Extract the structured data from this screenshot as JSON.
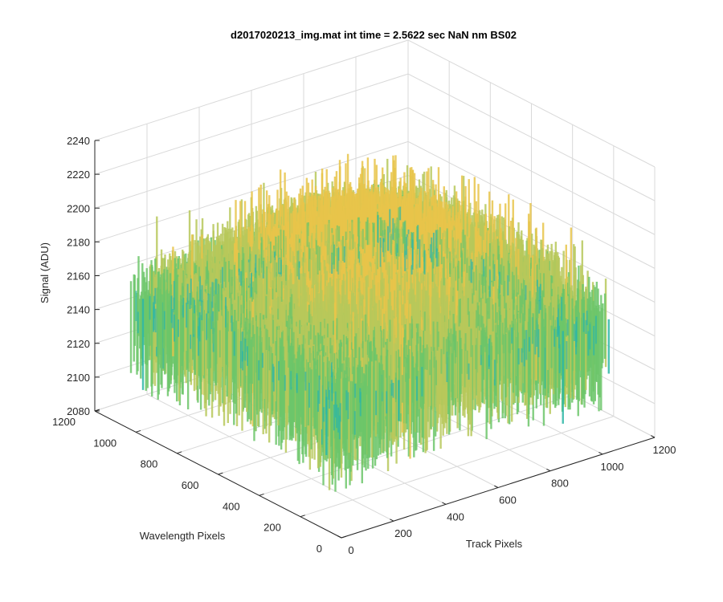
{
  "chart_data": {
    "type": "surface",
    "title": "d2017020213_img.mat int time = 2.5622 sec  NaN nm BS02",
    "xlabel": "Track Pixels",
    "ylabel": "Wavelength Pixels",
    "zlabel": "Signal (ADU)",
    "xlim": [
      0,
      1200
    ],
    "ylim": [
      0,
      1200
    ],
    "zlim": [
      2080,
      2240
    ],
    "xticks": [
      "0",
      "200",
      "400",
      "600",
      "800",
      "1000",
      "1200"
    ],
    "yticks": [
      "0",
      "200",
      "400",
      "600",
      "800",
      "1000",
      "1200"
    ],
    "zticks": [
      "2080",
      "2100",
      "2120",
      "2140",
      "2160",
      "2180",
      "2200",
      "2220",
      "2240"
    ],
    "grid": true,
    "colormap": [
      "#1f9cc3",
      "#2cb6a6",
      "#6cc56a",
      "#b7c85a",
      "#e8c44a"
    ],
    "surface_summary": {
      "x_extent": [
        0,
        1024
      ],
      "y_extent": [
        0,
        1024
      ],
      "mean_signal": 2165,
      "noise_range": [
        2105,
        2235
      ],
      "center_peak_signal": 2195,
      "edge_signal": 2150
    }
  }
}
